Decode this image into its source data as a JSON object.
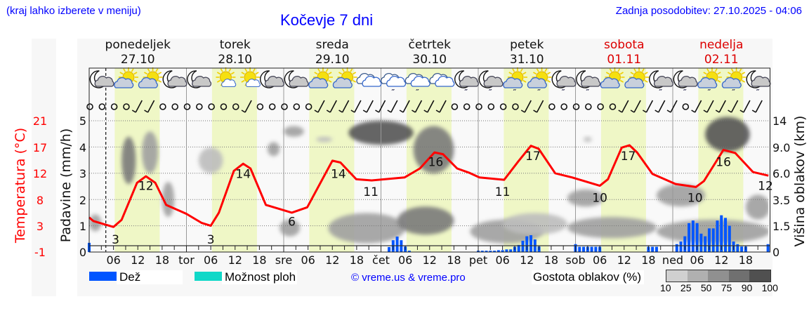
{
  "header": {
    "hint": "(kraj lahko izberete v meniju)",
    "title": "Kočevje 7 dni",
    "updated": "Zadnja posodobitev: 27.10.2025 - 04:06"
  },
  "days": [
    {
      "name": "ponedeljek",
      "date": "27.10",
      "weekend": false
    },
    {
      "name": "torek",
      "date": "28.10",
      "weekend": false
    },
    {
      "name": "sreda",
      "date": "29.10",
      "weekend": false
    },
    {
      "name": "četrtek",
      "date": "30.10",
      "weekend": false
    },
    {
      "name": "petek",
      "date": "31.10",
      "weekend": false
    },
    {
      "name": "sobota",
      "date": "01.11",
      "weekend": true
    },
    {
      "name": "nedelja",
      "date": "02.11",
      "weekend": true
    }
  ],
  "legend": {
    "rain": "Dež",
    "showers": "Možnost ploh",
    "copyright": "© vreme.us & vreme.pro",
    "cloud_density": "Gostota oblakov (%)",
    "density_steps": [
      "10",
      "25",
      "50",
      "75",
      "90",
      "100"
    ]
  },
  "colors": {
    "rain": "#0055ff",
    "showers": "#10d8c8",
    "temperature": "#ff0000",
    "weekend": "#dd0000",
    "daylight": "#eff7c6",
    "title": "#0000ff"
  },
  "chart_data": {
    "type": "line",
    "title": "Kočevje 7 dni",
    "x_unit": "hours since Mon 27.10 00:00",
    "xlim": [
      0,
      168
    ],
    "now_hour": 4.1,
    "daylight_hours": [
      6.3,
      17.4
    ],
    "x_tick_labels": [
      "06",
      "12",
      "18"
    ],
    "day_abbrev": [
      "tor",
      "sre",
      "čet",
      "pet",
      "sob",
      "ned"
    ],
    "left_axis_1": {
      "label": "Temperatura (°C)",
      "ticks": [
        "-1",
        "3",
        "8",
        "12",
        "17",
        "21"
      ],
      "range": [
        -1,
        21
      ]
    },
    "left_axis_2": {
      "label": "Padavine (mm/h)",
      "ticks": [
        "0",
        "1",
        "2",
        "3",
        "4",
        "5"
      ],
      "range": [
        0,
        5
      ]
    },
    "right_axis": {
      "label": "Višina oblakov (km)",
      "ticks": [
        "0",
        "1.5",
        "3.5",
        "6.0",
        "9.0",
        "14"
      ]
    },
    "temperature": [
      [
        0,
        4.8
      ],
      [
        1,
        4.2
      ],
      [
        6,
        3.2
      ],
      [
        8,
        4.4
      ],
      [
        11.8,
        10.6
      ],
      [
        14,
        11.7
      ],
      [
        16.3,
        10.6
      ],
      [
        19,
        6.9
      ],
      [
        24,
        5.4
      ],
      [
        27.7,
        3.9
      ],
      [
        30,
        3.4
      ],
      [
        32,
        5.6
      ],
      [
        35.7,
        12.6
      ],
      [
        38,
        13.8
      ],
      [
        39.8,
        13
      ],
      [
        43.6,
        6.9
      ],
      [
        50,
        5.6
      ],
      [
        53.8,
        6.5
      ],
      [
        60,
        14.3
      ],
      [
        62,
        14
      ],
      [
        65.9,
        11.2
      ],
      [
        69.7,
        11
      ],
      [
        77.8,
        11.5
      ],
      [
        81.6,
        13
      ],
      [
        85.2,
        15.7
      ],
      [
        87.3,
        15.4
      ],
      [
        90.8,
        13
      ],
      [
        93.7,
        12.3
      ],
      [
        96.3,
        11.5
      ],
      [
        102.4,
        11.1
      ],
      [
        105.9,
        14.2
      ],
      [
        109,
        16.8
      ],
      [
        110.9,
        16.3
      ],
      [
        115,
        12.2
      ],
      [
        119.2,
        11.5
      ],
      [
        126,
        10.1
      ],
      [
        128,
        11.2
      ],
      [
        131.4,
        16.5
      ],
      [
        133.3,
        16.9
      ],
      [
        135.2,
        15.7
      ],
      [
        139,
        12.1
      ],
      [
        144.7,
        10.4
      ],
      [
        149.7,
        9.9
      ],
      [
        151.7,
        10.9
      ],
      [
        156.5,
        16.1
      ],
      [
        159.4,
        15.6
      ],
      [
        163.8,
        12.4
      ],
      [
        167.6,
        11.8
      ]
    ],
    "temperature_labels": [
      [
        6.5,
        3
      ],
      [
        14,
        12
      ],
      [
        30,
        3
      ],
      [
        38,
        14
      ],
      [
        50,
        6
      ],
      [
        61.5,
        14
      ],
      [
        69.5,
        11
      ],
      [
        85.5,
        16
      ],
      [
        102,
        11
      ],
      [
        109.5,
        17
      ],
      [
        126,
        10
      ],
      [
        133,
        17
      ],
      [
        149.5,
        10
      ],
      [
        156.5,
        16
      ],
      [
        167.5,
        12
      ]
    ],
    "precipitation": [
      [
        0,
        0.35
      ],
      [
        74,
        0.19
      ],
      [
        75,
        0.45
      ],
      [
        76,
        0.59
      ],
      [
        77,
        0.45
      ],
      [
        78,
        0.21
      ],
      [
        79,
        0.05
      ],
      [
        96,
        0.05
      ],
      [
        97,
        0.05
      ],
      [
        98,
        0.05
      ],
      [
        99,
        0.05
      ],
      [
        100,
        0.05
      ],
      [
        101,
        0.07
      ],
      [
        102,
        0.07
      ],
      [
        103,
        0.1
      ],
      [
        104,
        0.1
      ],
      [
        105,
        0.2
      ],
      [
        106,
        0.27
      ],
      [
        107,
        0.43
      ],
      [
        108,
        0.6
      ],
      [
        109,
        0.64
      ],
      [
        110,
        0.48
      ],
      [
        111,
        0.21
      ],
      [
        120,
        0.3
      ],
      [
        121,
        0.2
      ],
      [
        122,
        0.2
      ],
      [
        123,
        0.2
      ],
      [
        124,
        0.2
      ],
      [
        125,
        0.2
      ],
      [
        126,
        0.2
      ],
      [
        138,
        0.2
      ],
      [
        139,
        0.2
      ],
      [
        140,
        0.2
      ],
      [
        145,
        0.3
      ],
      [
        146,
        0.4
      ],
      [
        147,
        0.6
      ],
      [
        148,
        1.1
      ],
      [
        149,
        1.2
      ],
      [
        150,
        1.1
      ],
      [
        151,
        0.7
      ],
      [
        152,
        0.6
      ],
      [
        153,
        0.9
      ],
      [
        154,
        0.9
      ],
      [
        155,
        1.2
      ],
      [
        156,
        1.4
      ],
      [
        157,
        1.3
      ],
      [
        158,
        1.0
      ],
      [
        159,
        0.4
      ],
      [
        160,
        0.3
      ],
      [
        161,
        0.21
      ],
      [
        162,
        0.21
      ],
      [
        167.5,
        0.3
      ]
    ],
    "cloud_cells": [
      [
        0,
        3,
        1.2,
        2.4,
        50
      ],
      [
        8,
        11.5,
        5,
        11,
        75
      ],
      [
        13,
        17,
        6,
        12,
        50
      ],
      [
        18,
        21,
        2.2,
        5.2,
        50
      ],
      [
        27,
        33,
        6,
        9,
        25
      ],
      [
        44,
        47,
        8,
        10,
        50
      ],
      [
        47,
        52,
        0.9,
        2,
        50
      ],
      [
        48,
        53,
        11,
        13,
        50
      ],
      [
        56,
        60,
        10,
        11,
        25
      ],
      [
        59,
        78,
        0.5,
        2.5,
        50
      ],
      [
        64,
        80,
        9.5,
        14,
        90
      ],
      [
        76,
        90,
        1,
        3,
        75
      ],
      [
        80,
        90,
        6,
        13,
        75
      ],
      [
        94,
        112,
        0.5,
        2,
        50
      ],
      [
        102,
        118,
        1,
        2.5,
        25
      ],
      [
        118,
        127,
        3,
        4.5,
        50
      ],
      [
        118,
        140,
        0.8,
        2.2,
        50
      ],
      [
        122,
        124,
        10,
        11,
        25
      ],
      [
        140,
        152,
        3,
        5,
        50
      ],
      [
        152,
        163,
        8.5,
        15,
        90
      ],
      [
        140,
        168,
        0.5,
        2,
        50
      ],
      [
        162,
        168,
        2,
        4,
        50
      ]
    ],
    "weather_icons": [
      "moon-cloud",
      "sun-cloud",
      "sun-cloud",
      "moon-cloud",
      "moon-cloud",
      "sun-smallcloud",
      "sun-smallcloud",
      "moon-cloud",
      "moon-cloud",
      "sun-cloud",
      "sun-cloud",
      "cloud",
      "cloud-rain",
      "cloud-rain",
      "cloud",
      "moon-cloud-rain",
      "moon-cloud-rain",
      "sun-cloud-rain",
      "sun-cloud-rain",
      "moon-cloud-rain",
      "moon-cloud-rain",
      "sun-cloud",
      "sun-cloud",
      "moon-cloud-rain",
      "moon-cloud-rain",
      "sun-cloud-rain",
      "sun-cloud-rain",
      "moon-cloud-rain"
    ],
    "wind": [
      "c",
      "c",
      "c",
      "c",
      "b",
      "b",
      "c",
      "c",
      "c",
      "c",
      "c",
      "c",
      "c",
      "b",
      "c",
      "c",
      "c",
      "c",
      "c",
      "b",
      "b",
      "b",
      "b",
      "b",
      "b",
      "b",
      "b",
      "b",
      "b",
      "b",
      "c",
      "c",
      "c",
      "c",
      "c",
      "c",
      "b",
      "b",
      "c",
      "c",
      "c",
      "c",
      "c",
      "c",
      "b",
      "b",
      "b",
      "b",
      "b",
      "c",
      "b",
      "b",
      "b",
      "b",
      "b",
      "b"
    ]
  }
}
